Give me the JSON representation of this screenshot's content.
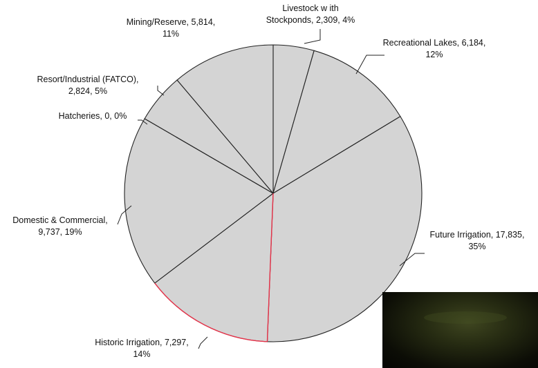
{
  "chart_data": {
    "type": "pie",
    "title": "",
    "legend": "none",
    "slice_fill": "#d4d4d4",
    "slice_stroke": "#222222",
    "highlight_stroke": "#e8334a",
    "slices": [
      {
        "label": "Livestock with Stockponds",
        "value": 2309,
        "percent": "4%",
        "display": [
          "Livestock w ith",
          "Stockponds, 2,309, 4%"
        ]
      },
      {
        "label": "Recreational Lakes",
        "value": 6184,
        "percent": "12%",
        "display": [
          "Recreational Lakes, 6,184,",
          "12%"
        ]
      },
      {
        "label": "Future Irrigation",
        "value": 17835,
        "percent": "35%",
        "display": [
          "Future Irrigation, 17,835,",
          "35%"
        ]
      },
      {
        "label": "Historic Irrigation",
        "value": 7297,
        "percent": "14%",
        "display": [
          "Historic Irrigation, 7,297,",
          "14%"
        ]
      },
      {
        "label": "Domestic & Commercial",
        "value": 9737,
        "percent": "19%",
        "display": [
          "Domestic & Commercial,",
          "9,737, 19%"
        ]
      },
      {
        "label": "Hatcheries",
        "value": 0,
        "percent": "0%",
        "display": [
          "Hatcheries, 0, 0%"
        ]
      },
      {
        "label": "Resort/Industrial (FATCO)",
        "value": 2824,
        "percent": "5%",
        "display": [
          "Resort/Industrial (FATCO),",
          "2,824, 5%"
        ]
      },
      {
        "label": "Mining/Reserve",
        "value": 5814,
        "percent": "11%",
        "display": [
          "Mining/Reserve, 5,814,",
          "11%"
        ]
      }
    ]
  },
  "overlay_photo": {
    "description_icon": "dark-photo-thumbnail"
  }
}
